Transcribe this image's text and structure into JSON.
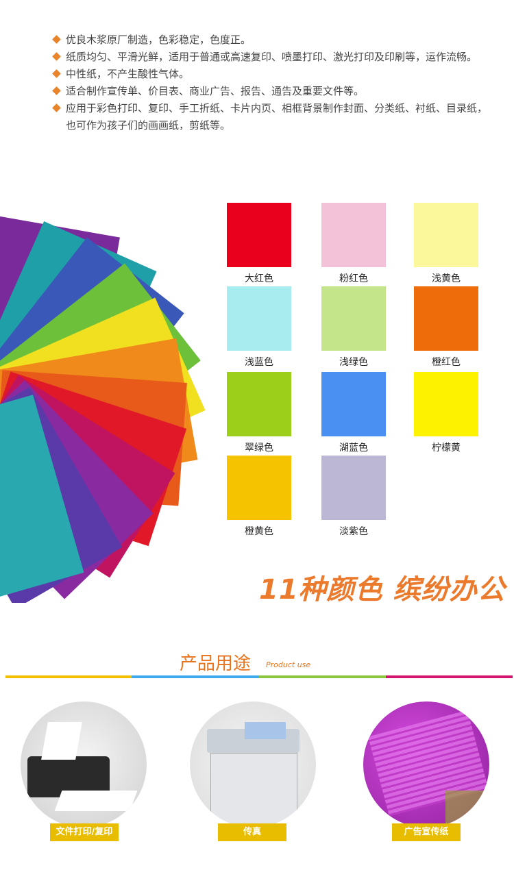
{
  "features": [
    "优良木浆原厂制造，色彩稳定，色度正。",
    "纸质均匀、平滑光鲜，适用于普通或高速复印、喷墨打印、激光打印及印刷等，运作流畅。",
    "中性纸，不产生酸性气体。",
    "适合制作宣传单、价目表、商业广告、报告、通告及重要文件等。",
    "应用于彩色打印、复印、手工折纸、卡片内页、相框背景制作封面、分类纸、衬纸、目录纸，也可作为孩子们的画画纸，剪纸等。"
  ],
  "colors": [
    {
      "name": "大红色",
      "hex": "#e8001c"
    },
    {
      "name": "粉红色",
      "hex": "#f4c2d8"
    },
    {
      "name": "浅黄色",
      "hex": "#fbf79b"
    },
    {
      "name": "浅蓝色",
      "hex": "#a8ecf0"
    },
    {
      "name": "浅绿色",
      "hex": "#c5e58a"
    },
    {
      "name": "橙红色",
      "hex": "#ee6c0a"
    },
    {
      "name": "翠绿色",
      "hex": "#9ccf1a"
    },
    {
      "name": "湖蓝色",
      "hex": "#4a8ff2"
    },
    {
      "name": "柠檬黄",
      "hex": "#fdf200"
    },
    {
      "name": "橙黄色",
      "hex": "#f5c300"
    },
    {
      "name": "淡紫色",
      "hex": "#bbb7d4"
    }
  ],
  "slogan": "11种颜色 缤纷办公",
  "usage": {
    "title": "产品用途",
    "subtitle": "Product use",
    "items": [
      {
        "label": "文件打印/复印",
        "icon": "printer-icon"
      },
      {
        "label": "传真",
        "icon": "copier-icon"
      },
      {
        "label": "广告宣传纸",
        "icon": "flyer-icon"
      }
    ]
  },
  "divider_colors": [
    "#f2be00",
    "#3fa9f0",
    "#8cc63e",
    "#d4146e"
  ]
}
